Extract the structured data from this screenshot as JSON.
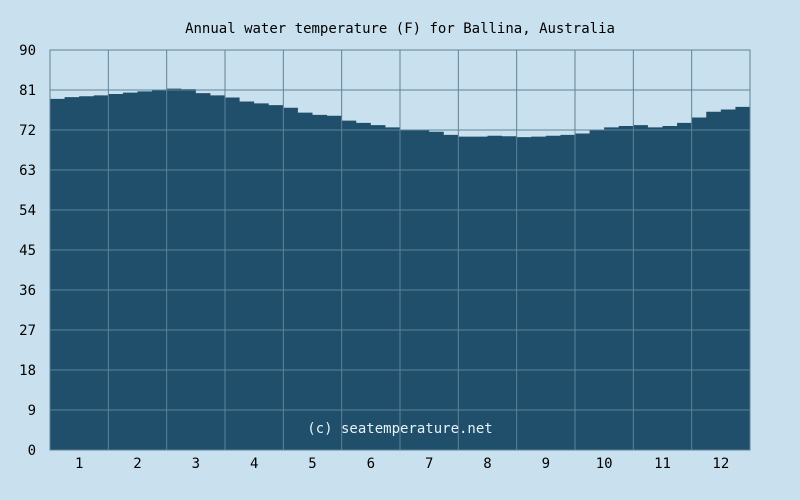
{
  "chart_data": {
    "type": "area",
    "title": "Annual water temperature (F) for Ballina, Australia",
    "xlabel": "",
    "ylabel": "",
    "x_ticks": [
      "1",
      "2",
      "3",
      "4",
      "5",
      "6",
      "7",
      "8",
      "9",
      "10",
      "11",
      "12"
    ],
    "y_ticks": [
      "0",
      "9",
      "18",
      "27",
      "36",
      "45",
      "54",
      "63",
      "72",
      "81",
      "90"
    ],
    "ylim": [
      0,
      90
    ],
    "xlim": [
      0.5,
      12.5
    ],
    "grid": true,
    "series": [
      {
        "values": [
          [
            0.5,
            79.0
          ],
          [
            0.75,
            79.4
          ],
          [
            1.0,
            79.6
          ],
          [
            1.25,
            79.8
          ],
          [
            1.5,
            80.1
          ],
          [
            1.75,
            80.4
          ],
          [
            2.0,
            80.7
          ],
          [
            2.25,
            81.0
          ],
          [
            2.5,
            81.3
          ],
          [
            2.75,
            81.2
          ],
          [
            3.0,
            80.3
          ],
          [
            3.25,
            79.8
          ],
          [
            3.5,
            79.3
          ],
          [
            3.75,
            78.4
          ],
          [
            4.0,
            78.0
          ],
          [
            4.25,
            77.6
          ],
          [
            4.5,
            77.0
          ],
          [
            4.75,
            75.9
          ],
          [
            5.0,
            75.4
          ],
          [
            5.25,
            75.2
          ],
          [
            5.5,
            74.1
          ],
          [
            5.75,
            73.6
          ],
          [
            6.0,
            73.1
          ],
          [
            6.25,
            72.6
          ],
          [
            6.5,
            72.1
          ],
          [
            6.75,
            71.9
          ],
          [
            7.0,
            71.6
          ],
          [
            7.25,
            70.9
          ],
          [
            7.5,
            70.5
          ],
          [
            7.75,
            70.5
          ],
          [
            8.0,
            70.7
          ],
          [
            8.25,
            70.6
          ],
          [
            8.5,
            70.4
          ],
          [
            8.75,
            70.5
          ],
          [
            9.0,
            70.7
          ],
          [
            9.25,
            70.9
          ],
          [
            9.5,
            71.2
          ],
          [
            9.75,
            72.0
          ],
          [
            10.0,
            72.6
          ],
          [
            10.25,
            72.9
          ],
          [
            10.5,
            73.1
          ],
          [
            10.75,
            72.6
          ],
          [
            11.0,
            72.9
          ],
          [
            11.25,
            73.6
          ],
          [
            11.5,
            74.8
          ],
          [
            11.75,
            76.1
          ],
          [
            12.0,
            76.6
          ],
          [
            12.25,
            77.2
          ],
          [
            12.5,
            77.5
          ]
        ]
      }
    ],
    "colors": {
      "background": "#c9e1ee",
      "area": "#1f4f6b",
      "grid": "#5f8297"
    },
    "annotation": "(c) seatemperature.net"
  }
}
